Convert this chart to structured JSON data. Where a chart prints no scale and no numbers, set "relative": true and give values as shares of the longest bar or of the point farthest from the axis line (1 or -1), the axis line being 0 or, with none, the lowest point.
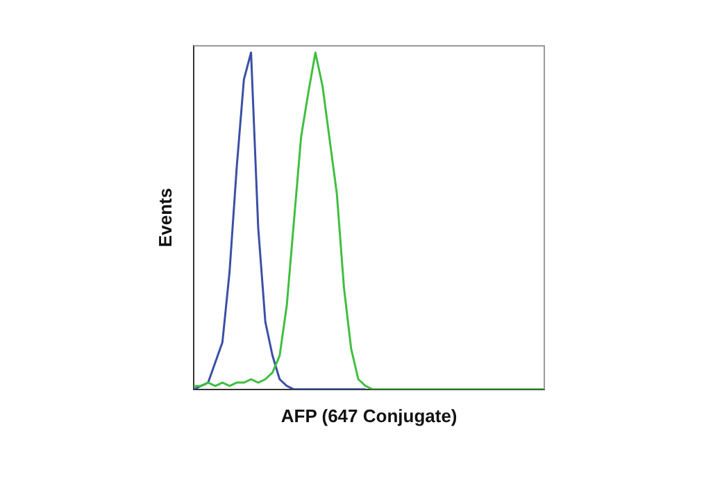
{
  "chart_data": {
    "type": "line",
    "xlabel": "AFP (647 Conjugate)",
    "ylabel": "Events",
    "relative": true,
    "tick_labels": false,
    "grid": false,
    "legend": false,
    "marker": "none",
    "line_style": "solid",
    "categories": [
      null,
      null,
      null,
      null,
      null,
      null,
      null,
      null,
      null,
      null,
      null,
      null,
      null,
      null,
      null,
      null,
      null,
      null,
      null,
      null,
      null,
      null,
      null,
      null,
      null,
      null,
      null,
      null,
      null,
      null,
      null,
      null,
      null,
      null,
      null,
      null,
      null,
      null,
      null,
      null,
      null,
      null,
      null,
      null,
      null,
      null,
      null,
      null,
      null,
      null
    ],
    "series": [
      {
        "color": "#3a4fa6",
        "values": [
          0,
          0.01,
          0.02,
          0.08,
          0.14,
          0.35,
          0.66,
          0.92,
          1,
          0.48,
          0.2,
          0.1,
          0.03,
          0.01,
          0,
          0,
          0,
          0,
          0,
          0,
          0,
          0,
          0,
          0,
          0,
          null,
          null,
          null,
          null,
          null,
          null,
          null,
          null,
          null,
          null,
          null,
          null,
          null,
          null,
          null,
          null,
          null,
          null,
          null,
          null,
          null,
          null,
          null,
          null,
          null
        ]
      },
      {
        "color": "#3fbf3f",
        "values": [
          0.01,
          0.01,
          0.02,
          0.01,
          0.02,
          0.01,
          0.02,
          0.02,
          0.03,
          0.02,
          0.03,
          0.05,
          0.1,
          0.25,
          0.5,
          0.75,
          0.88,
          1,
          0.9,
          0.74,
          0.58,
          0.3,
          0.12,
          0.03,
          0.01,
          0,
          0,
          0,
          0,
          0,
          0,
          0,
          0,
          0,
          0,
          0,
          0,
          0,
          0,
          0,
          0,
          0,
          0,
          0,
          0,
          0,
          0,
          0,
          0,
          0
        ]
      }
    ]
  }
}
